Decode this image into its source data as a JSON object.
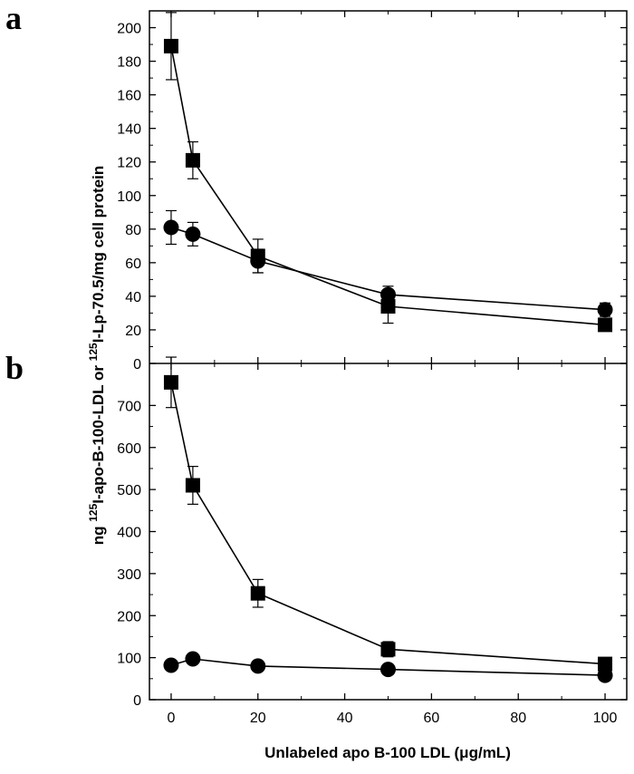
{
  "panels": [
    {
      "letter": "a"
    },
    {
      "letter": "b"
    }
  ],
  "axes": {
    "ylabel": {
      "prefix": "ng ",
      "sup1": "125",
      "mid": "I-apo-B-100-LDL or ",
      "sup2": "125",
      "end": "I-Lp-70.5/mg cell protein"
    },
    "xlabel": "Unlabeled apo B-100 LDL (μg/mL)"
  },
  "chart_data": [
    {
      "type": "line",
      "panel": "a",
      "x": [
        0,
        5,
        20,
        50,
        100
      ],
      "xlim": [
        -5,
        105
      ],
      "xticks": [
        0,
        20,
        40,
        60,
        80,
        100
      ],
      "ylim": [
        0,
        210
      ],
      "yticks": [
        0,
        20,
        40,
        60,
        80,
        100,
        120,
        140,
        160,
        180,
        200
      ],
      "series": [
        {
          "marker": "square",
          "values": [
            189,
            121,
            64,
            34,
            23
          ],
          "errors": [
            20,
            11,
            10,
            10,
            0
          ]
        },
        {
          "marker": "circle",
          "values": [
            81,
            77,
            61,
            41,
            32
          ],
          "errors": [
            10,
            7,
            7,
            5,
            4
          ]
        }
      ]
    },
    {
      "type": "line",
      "panel": "b",
      "x": [
        0,
        5,
        20,
        50,
        100
      ],
      "xlim": [
        -5,
        105
      ],
      "xticks": [
        0,
        20,
        40,
        60,
        80,
        100
      ],
      "ylim": [
        0,
        800
      ],
      "yticks": [
        0,
        100,
        200,
        300,
        400,
        500,
        600,
        700
      ],
      "series": [
        {
          "marker": "square",
          "values": [
            755,
            510,
            253,
            120,
            85
          ],
          "errors": [
            60,
            45,
            33,
            18,
            0
          ]
        },
        {
          "marker": "circle",
          "values": [
            82,
            97,
            80,
            72,
            58
          ],
          "errors": [
            0,
            0,
            0,
            0,
            0
          ]
        }
      ]
    }
  ]
}
